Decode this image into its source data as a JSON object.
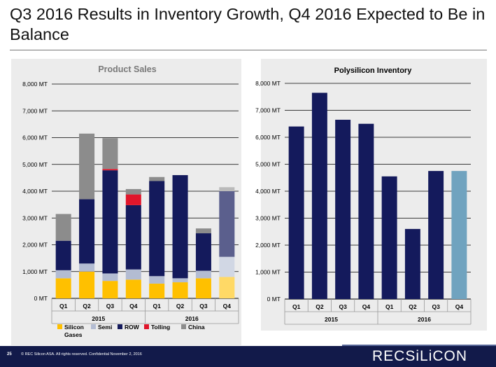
{
  "title": "Q3 2016 Results in Inventory Growth, Q4 2016 Expected to Be in Balance",
  "footer": {
    "page": "25",
    "copyright": "© REC Silicon ASA. All rights reserved. Confidential  November 2, 2016",
    "logo": "RECSiLiCON"
  },
  "colors": {
    "silicon": "#ffc000",
    "silicon_light": "#ffdd6e",
    "semi": "#b3bcd2",
    "row": "#141a5c",
    "row_light": "#5a5f9e",
    "tolling": "#e0162b",
    "china": "#8c8c8c",
    "inventory": "#141a5c",
    "inventory_light": "#70a3bf",
    "footer": "#121a4a"
  },
  "chart_data": [
    {
      "type": "bar",
      "stacked": true,
      "title": "Product Sales",
      "categories": [
        "Q1",
        "Q2",
        "Q3",
        "Q4",
        "Q1",
        "Q2",
        "Q3",
        "Q4"
      ],
      "groups": [
        {
          "label": "2015",
          "count": 4
        },
        {
          "label": "2016",
          "count": 4
        }
      ],
      "yticks": [
        "0 MT",
        "1,000 MT",
        "2,000 MT",
        "3,000 MT",
        "4,000 MT",
        "5,000 MT",
        "6,000 MT",
        "7,000 MT",
        "8,000 MT"
      ],
      "ylim": [
        0,
        8000
      ],
      "grid": true,
      "legend_position": "bottom",
      "series": [
        {
          "name": "Silicon Gases",
          "color": "#ffc000",
          "values": [
            750,
            1000,
            650,
            700,
            550,
            600,
            750,
            800
          ]
        },
        {
          "name": "Semi",
          "color": "#b3bcd2",
          "values": [
            300,
            300,
            280,
            380,
            280,
            150,
            280,
            750
          ]
        },
        {
          "name": "ROW",
          "color": "#141a5c",
          "values": [
            1100,
            2400,
            3850,
            2400,
            3550,
            3850,
            1400,
            2450
          ]
        },
        {
          "name": "Tolling",
          "color": "#e0162b",
          "values": [
            0,
            0,
            50,
            400,
            0,
            0,
            0,
            0
          ]
        },
        {
          "name": "China",
          "color": "#8c8c8c",
          "values": [
            1000,
            2450,
            1150,
            200,
            150,
            0,
            180,
            150
          ]
        }
      ],
      "highlighted_category_index": 7
    },
    {
      "type": "bar",
      "title": "Polysilicon Inventory",
      "categories": [
        "Q1",
        "Q2",
        "Q3",
        "Q4",
        "Q1",
        "Q2",
        "Q3",
        "Q4"
      ],
      "groups": [
        {
          "label": "2015",
          "count": 4
        },
        {
          "label": "2016",
          "count": 4
        }
      ],
      "yticks": [
        "0 MT",
        "1,000 MT",
        "2,000 MT",
        "3,000 MT",
        "4,000 MT",
        "5,000 MT",
        "6,000 MT",
        "7,000 MT",
        "8,000 MT"
      ],
      "ylim": [
        0,
        8000
      ],
      "grid": true,
      "values": [
        6400,
        7650,
        6650,
        6500,
        4550,
        2600,
        4750,
        4750
      ],
      "highlighted_category_index": 7
    }
  ]
}
